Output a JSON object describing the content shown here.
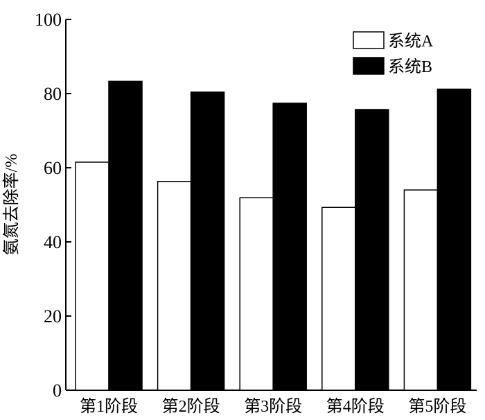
{
  "chart_data": {
    "type": "bar",
    "categories": [
      "第1阶段",
      "第2阶段",
      "第3阶段",
      "第4阶段",
      "第5阶段"
    ],
    "series": [
      {
        "name": "系统A",
        "values": [
          61.5,
          56.3,
          51.9,
          49.3,
          54.0
        ],
        "fill": "#ffffff",
        "stroke": "#000000"
      },
      {
        "name": "系统B",
        "values": [
          83.3,
          80.4,
          77.4,
          75.7,
          81.2
        ],
        "fill": "#000000",
        "stroke": "#000000"
      }
    ],
    "title": "",
    "xlabel": "",
    "ylabel": "氨氮去除率/%",
    "ylim": [
      0,
      100
    ],
    "yticks": [
      0,
      20,
      40,
      60,
      80,
      100
    ],
    "grid": false,
    "legend_position": "top-right"
  }
}
